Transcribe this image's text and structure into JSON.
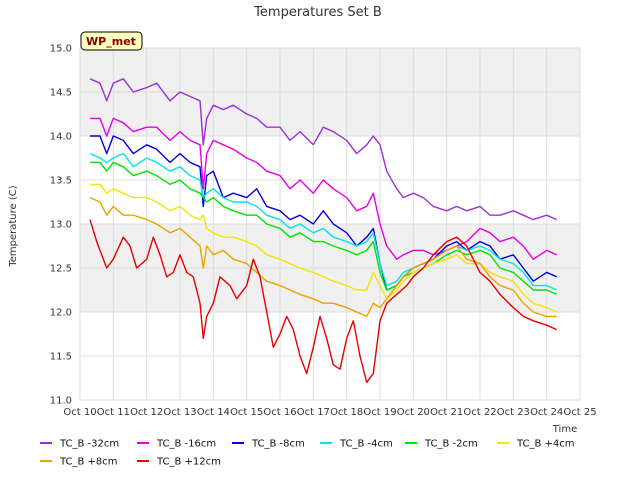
{
  "chart_data": {
    "type": "line",
    "title": "Temperatures Set B",
    "xlabel": "Time",
    "ylabel": "Temperature (C)",
    "badge": "WP_met",
    "ylim": [
      11.0,
      15.0
    ],
    "xlim": [
      10,
      25
    ],
    "y_ticks": [
      "11.0",
      "11.5",
      "12.0",
      "12.5",
      "13.0",
      "13.5",
      "14.0",
      "14.5",
      "15.0"
    ],
    "x_ticks": [
      "Oct 10",
      "Oct 11",
      "Oct 12",
      "Oct 13",
      "Oct 14",
      "Oct 15",
      "Oct 16",
      "Oct 17",
      "Oct 18",
      "Oct 19",
      "Oct 20",
      "Oct 21",
      "Oct 22",
      "Oct 23",
      "Oct 24",
      "Oct 25"
    ],
    "grid": true,
    "legend_position": "bottom",
    "series": [
      {
        "name": "TC_B -32cm",
        "color": "#9b30d9",
        "x": [
          10.3,
          10.6,
          10.8,
          11.0,
          11.3,
          11.6,
          12.0,
          12.3,
          12.7,
          13.0,
          13.3,
          13.6,
          13.7,
          13.8,
          14.0,
          14.3,
          14.6,
          15.0,
          15.3,
          15.6,
          16.0,
          16.3,
          16.6,
          17.0,
          17.3,
          17.6,
          18.0,
          18.3,
          18.6,
          18.8,
          19.0,
          19.2,
          19.5,
          19.7,
          20.0,
          20.3,
          20.6,
          21.0,
          21.3,
          21.6,
          22.0,
          22.3,
          22.6,
          23.0,
          23.3,
          23.6,
          24.0,
          24.3
        ],
        "y": [
          14.65,
          14.6,
          14.4,
          14.6,
          14.65,
          14.5,
          14.55,
          14.6,
          14.4,
          14.5,
          14.45,
          14.4,
          13.9,
          14.2,
          14.35,
          14.3,
          14.35,
          14.25,
          14.2,
          14.1,
          14.1,
          13.95,
          14.05,
          13.9,
          14.1,
          14.05,
          13.95,
          13.8,
          13.9,
          14.0,
          13.9,
          13.6,
          13.4,
          13.3,
          13.35,
          13.3,
          13.2,
          13.15,
          13.2,
          13.15,
          13.2,
          13.1,
          13.1,
          13.15,
          13.1,
          13.05,
          13.1,
          13.05
        ]
      },
      {
        "name": "TC_B -16cm",
        "color": "#e600e6",
        "x": [
          10.3,
          10.6,
          10.8,
          11.0,
          11.3,
          11.6,
          12.0,
          12.3,
          12.7,
          13.0,
          13.3,
          13.6,
          13.7,
          13.8,
          14.0,
          14.3,
          14.6,
          15.0,
          15.3,
          15.6,
          16.0,
          16.3,
          16.6,
          17.0,
          17.3,
          17.6,
          18.0,
          18.3,
          18.6,
          18.8,
          19.0,
          19.2,
          19.5,
          19.7,
          20.0,
          20.3,
          20.6,
          21.0,
          21.3,
          21.6,
          22.0,
          22.3,
          22.6,
          23.0,
          23.3,
          23.6,
          24.0,
          24.3
        ],
        "y": [
          14.2,
          14.2,
          14.0,
          14.2,
          14.15,
          14.05,
          14.1,
          14.1,
          13.95,
          14.05,
          13.95,
          13.9,
          13.4,
          13.8,
          13.95,
          13.9,
          13.85,
          13.75,
          13.7,
          13.6,
          13.55,
          13.4,
          13.5,
          13.35,
          13.5,
          13.4,
          13.3,
          13.15,
          13.2,
          13.35,
          13.0,
          12.75,
          12.6,
          12.65,
          12.7,
          12.7,
          12.65,
          12.7,
          12.75,
          12.8,
          12.95,
          12.9,
          12.8,
          12.85,
          12.75,
          12.6,
          12.7,
          12.65
        ]
      },
      {
        "name": "TC_B -8cm",
        "color": "#0000dd",
        "x": [
          10.3,
          10.6,
          10.8,
          11.0,
          11.3,
          11.6,
          12.0,
          12.3,
          12.7,
          13.0,
          13.3,
          13.6,
          13.7,
          13.8,
          14.0,
          14.3,
          14.6,
          15.0,
          15.3,
          15.6,
          16.0,
          16.3,
          16.6,
          17.0,
          17.3,
          17.6,
          18.0,
          18.3,
          18.6,
          18.8,
          19.0,
          19.2,
          19.5,
          19.7,
          20.0,
          20.3,
          20.6,
          21.0,
          21.3,
          21.6,
          22.0,
          22.3,
          22.6,
          23.0,
          23.3,
          23.6,
          24.0,
          24.3
        ],
        "y": [
          14.0,
          14.0,
          13.8,
          14.0,
          13.95,
          13.8,
          13.9,
          13.85,
          13.7,
          13.8,
          13.7,
          13.65,
          13.2,
          13.55,
          13.6,
          13.3,
          13.35,
          13.3,
          13.4,
          13.2,
          13.15,
          13.05,
          13.1,
          13.0,
          13.15,
          13.0,
          12.9,
          12.75,
          12.85,
          12.95,
          12.55,
          12.25,
          12.3,
          12.4,
          12.5,
          12.55,
          12.6,
          12.75,
          12.8,
          12.7,
          12.8,
          12.75,
          12.6,
          12.65,
          12.5,
          12.35,
          12.45,
          12.4
        ]
      },
      {
        "name": "TC_B -4cm",
        "color": "#00e6e6",
        "x": [
          10.3,
          10.6,
          10.8,
          11.0,
          11.3,
          11.6,
          12.0,
          12.3,
          12.7,
          13.0,
          13.3,
          13.6,
          13.7,
          13.8,
          14.0,
          14.3,
          14.6,
          15.0,
          15.3,
          15.6,
          16.0,
          16.3,
          16.6,
          17.0,
          17.3,
          17.6,
          18.0,
          18.3,
          18.6,
          18.8,
          19.0,
          19.2,
          19.5,
          19.7,
          20.0,
          20.3,
          20.6,
          21.0,
          21.3,
          21.6,
          22.0,
          22.3,
          22.6,
          23.0,
          23.3,
          23.6,
          24.0,
          24.3
        ],
        "y": [
          13.8,
          13.75,
          13.7,
          13.75,
          13.8,
          13.65,
          13.75,
          13.7,
          13.6,
          13.65,
          13.55,
          13.5,
          13.3,
          13.35,
          13.4,
          13.3,
          13.25,
          13.25,
          13.2,
          13.1,
          13.05,
          12.95,
          13.0,
          12.9,
          12.95,
          12.85,
          12.8,
          12.75,
          12.8,
          12.9,
          12.55,
          12.3,
          12.35,
          12.45,
          12.5,
          12.55,
          12.6,
          12.7,
          12.75,
          12.7,
          12.75,
          12.7,
          12.6,
          12.55,
          12.45,
          12.3,
          12.3,
          12.25
        ]
      },
      {
        "name": "TC_B -2cm",
        "color": "#00e600",
        "x": [
          10.3,
          10.6,
          10.8,
          11.0,
          11.3,
          11.6,
          12.0,
          12.3,
          12.7,
          13.0,
          13.3,
          13.6,
          13.7,
          13.8,
          14.0,
          14.3,
          14.6,
          15.0,
          15.3,
          15.6,
          16.0,
          16.3,
          16.6,
          17.0,
          17.3,
          17.6,
          18.0,
          18.3,
          18.6,
          18.8,
          19.0,
          19.2,
          19.5,
          19.7,
          20.0,
          20.3,
          20.6,
          21.0,
          21.3,
          21.6,
          22.0,
          22.3,
          22.6,
          23.0,
          23.3,
          23.6,
          24.0,
          24.3
        ],
        "y": [
          13.7,
          13.7,
          13.6,
          13.7,
          13.65,
          13.55,
          13.6,
          13.55,
          13.45,
          13.5,
          13.4,
          13.35,
          13.3,
          13.25,
          13.3,
          13.2,
          13.15,
          13.1,
          13.1,
          13.0,
          12.95,
          12.85,
          12.9,
          12.8,
          12.8,
          12.75,
          12.7,
          12.65,
          12.7,
          12.8,
          12.45,
          12.25,
          12.3,
          12.4,
          12.45,
          12.5,
          12.55,
          12.65,
          12.7,
          12.65,
          12.7,
          12.65,
          12.5,
          12.45,
          12.35,
          12.25,
          12.25,
          12.2
        ]
      },
      {
        "name": "TC_B +4cm",
        "color": "#f0e600",
        "x": [
          10.3,
          10.6,
          10.8,
          11.0,
          11.3,
          11.6,
          12.0,
          12.3,
          12.7,
          13.0,
          13.3,
          13.6,
          13.7,
          13.8,
          14.0,
          14.3,
          14.6,
          15.0,
          15.3,
          15.6,
          16.0,
          16.3,
          16.6,
          17.0,
          17.3,
          17.6,
          18.0,
          18.3,
          18.6,
          18.8,
          19.0,
          19.2,
          19.5,
          19.7,
          20.0,
          20.3,
          20.6,
          21.0,
          21.3,
          21.6,
          22.0,
          22.3,
          22.6,
          23.0,
          23.3,
          23.6,
          24.0,
          24.3
        ],
        "y": [
          13.45,
          13.45,
          13.35,
          13.4,
          13.35,
          13.3,
          13.3,
          13.25,
          13.15,
          13.2,
          13.1,
          13.05,
          13.1,
          12.95,
          12.9,
          12.85,
          12.85,
          12.8,
          12.75,
          12.65,
          12.6,
          12.55,
          12.5,
          12.45,
          12.4,
          12.35,
          12.3,
          12.25,
          12.25,
          12.45,
          12.3,
          12.15,
          12.25,
          12.35,
          12.45,
          12.5,
          12.55,
          12.6,
          12.65,
          12.55,
          12.55,
          12.45,
          12.4,
          12.35,
          12.2,
          12.1,
          12.05,
          12.0
        ]
      },
      {
        "name": "TC_B +8cm",
        "color": "#f0a000",
        "x": [
          10.3,
          10.6,
          10.8,
          11.0,
          11.3,
          11.6,
          12.0,
          12.3,
          12.7,
          13.0,
          13.3,
          13.6,
          13.7,
          13.8,
          14.0,
          14.3,
          14.6,
          15.0,
          15.3,
          15.6,
          16.0,
          16.3,
          16.6,
          17.0,
          17.3,
          17.6,
          18.0,
          18.3,
          18.6,
          18.8,
          19.0,
          19.2,
          19.5,
          19.7,
          20.0,
          20.3,
          20.6,
          21.0,
          21.3,
          21.6,
          22.0,
          22.3,
          22.6,
          23.0,
          23.3,
          23.6,
          24.0,
          24.3
        ],
        "y": [
          13.3,
          13.25,
          13.1,
          13.2,
          13.1,
          13.1,
          13.05,
          13.0,
          12.9,
          12.95,
          12.85,
          12.75,
          12.5,
          12.75,
          12.65,
          12.7,
          12.6,
          12.55,
          12.45,
          12.35,
          12.3,
          12.25,
          12.2,
          12.15,
          12.1,
          12.1,
          12.05,
          12.0,
          11.95,
          12.1,
          12.05,
          12.15,
          12.3,
          12.4,
          12.5,
          12.55,
          12.6,
          12.7,
          12.75,
          12.6,
          12.55,
          12.4,
          12.3,
          12.25,
          12.1,
          12.0,
          11.95,
          11.95
        ]
      },
      {
        "name": "TC_B +12cm",
        "color": "#e60000",
        "x": [
          10.3,
          10.5,
          10.8,
          11.0,
          11.3,
          11.5,
          11.7,
          12.0,
          12.2,
          12.4,
          12.6,
          12.8,
          13.0,
          13.2,
          13.4,
          13.6,
          13.7,
          13.8,
          14.0,
          14.2,
          14.5,
          14.7,
          15.0,
          15.2,
          15.4,
          15.6,
          15.8,
          16.0,
          16.2,
          16.4,
          16.6,
          16.8,
          17.0,
          17.2,
          17.4,
          17.6,
          17.8,
          18.0,
          18.2,
          18.4,
          18.6,
          18.8,
          19.0,
          19.2,
          19.5,
          19.8,
          20.0,
          20.3,
          20.6,
          21.0,
          21.3,
          21.6,
          21.8,
          22.0,
          22.3,
          22.6,
          23.0,
          23.3,
          23.6,
          24.0,
          24.3
        ],
        "y": [
          13.05,
          12.8,
          12.5,
          12.6,
          12.85,
          12.75,
          12.5,
          12.6,
          12.85,
          12.65,
          12.4,
          12.45,
          12.65,
          12.45,
          12.4,
          12.1,
          11.7,
          11.95,
          12.1,
          12.4,
          12.3,
          12.15,
          12.3,
          12.6,
          12.4,
          12.0,
          11.6,
          11.75,
          11.95,
          11.8,
          11.5,
          11.3,
          11.6,
          11.95,
          11.7,
          11.4,
          11.35,
          11.7,
          11.9,
          11.5,
          11.2,
          11.3,
          11.9,
          12.1,
          12.2,
          12.3,
          12.4,
          12.5,
          12.65,
          12.8,
          12.85,
          12.75,
          12.6,
          12.45,
          12.35,
          12.2,
          12.05,
          11.95,
          11.9,
          11.85,
          11.8
        ]
      }
    ]
  }
}
